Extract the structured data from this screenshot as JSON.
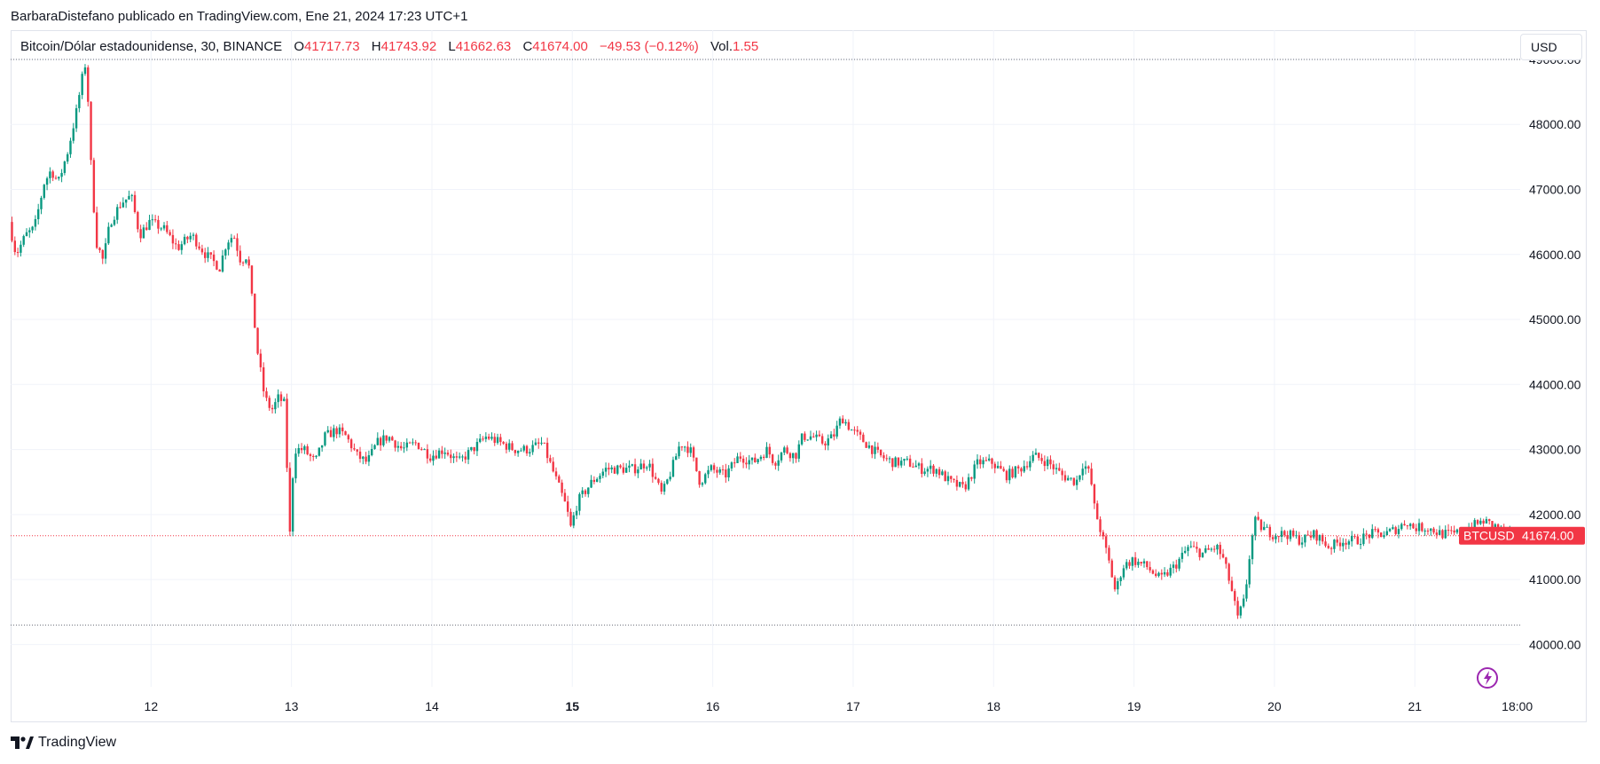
{
  "publication": {
    "line": "BarbaraDistefano publicado en TradingView.com, Ene 21, 2024 17:23 UTC+1"
  },
  "legend": {
    "symbol": "Bitcoin/Dólar estadounidense, 30, BINANCE",
    "open_label": "O",
    "open": "41717.73",
    "high_label": "H",
    "high": "41743.92",
    "low_label": "L",
    "low": "41662.63",
    "close_label": "C",
    "close": "41674.00",
    "change": "−49.53 (−0.12%)",
    "vol_label": "Vol.",
    "vol": "1.55"
  },
  "toolbar": {
    "currency": "USD"
  },
  "price_tag": {
    "symbol": "BTCUSD",
    "value": "41674.00"
  },
  "footer": {
    "brand": "TradingView"
  },
  "icons": {
    "alert": "lightning-icon",
    "logo": "tradingview-logo-icon"
  },
  "colors": {
    "up": "#089981",
    "down": "#f23645",
    "grid": "#f0f3fa",
    "text": "#131722",
    "alert": "#9c27b0"
  },
  "chart_data": {
    "type": "candlestick",
    "interval": "30",
    "y_ticks": [
      40000,
      41000,
      42000,
      43000,
      44000,
      45000,
      46000,
      47000,
      48000,
      49000
    ],
    "y_tick_labels": [
      "40000.00",
      "41000.00",
      "42000.00",
      "43000.00",
      "44000.00",
      "45000.00",
      "46000.00",
      "47000.00",
      "48000.00",
      "49000.00"
    ],
    "ylim": [
      39350,
      49450
    ],
    "xlim": [
      11.0,
      21.75
    ],
    "x_ticks": [
      12,
      13,
      14,
      15,
      16,
      17,
      18,
      19,
      20,
      21,
      21.7292
    ],
    "x_tick_labels": [
      "12",
      "13",
      "14",
      "15",
      "16",
      "17",
      "18",
      "19",
      "20",
      "21",
      "18:00"
    ],
    "x_tick_bold": [
      "15"
    ],
    "high_line": 49000,
    "low_line": 40300,
    "last_price": 41674.0,
    "grid": true,
    "path": [
      [
        11.0,
        46500
      ],
      [
        11.05,
        46000
      ],
      [
        11.12,
        46300
      ],
      [
        11.18,
        46400
      ],
      [
        11.25,
        47100
      ],
      [
        11.3,
        47300
      ],
      [
        11.35,
        47100
      ],
      [
        11.42,
        47600
      ],
      [
        11.48,
        48200
      ],
      [
        11.52,
        48700
      ],
      [
        11.55,
        49000
      ],
      [
        11.58,
        47500
      ],
      [
        11.62,
        46200
      ],
      [
        11.67,
        45900
      ],
      [
        11.72,
        46500
      ],
      [
        11.8,
        46800
      ],
      [
        11.87,
        46900
      ],
      [
        11.93,
        46300
      ],
      [
        12.0,
        46500
      ],
      [
        12.1,
        46400
      ],
      [
        12.2,
        46100
      ],
      [
        12.3,
        46300
      ],
      [
        12.4,
        46000
      ],
      [
        12.5,
        45800
      ],
      [
        12.55,
        46200
      ],
      [
        12.6,
        46300
      ],
      [
        12.65,
        45900
      ],
      [
        12.7,
        46000
      ],
      [
        12.73,
        45300
      ],
      [
        12.77,
        44500
      ],
      [
        12.82,
        43800
      ],
      [
        12.87,
        43600
      ],
      [
        12.92,
        43800
      ],
      [
        12.96,
        43700
      ],
      [
        13.0,
        41700
      ],
      [
        13.03,
        43000
      ],
      [
        13.1,
        43000
      ],
      [
        13.18,
        42800
      ],
      [
        13.25,
        43200
      ],
      [
        13.33,
        43300
      ],
      [
        13.4,
        43200
      ],
      [
        13.48,
        42900
      ],
      [
        13.55,
        42800
      ],
      [
        13.62,
        43100
      ],
      [
        13.7,
        43200
      ],
      [
        13.8,
        43000
      ],
      [
        13.9,
        43100
      ],
      [
        14.0,
        42900
      ],
      [
        14.1,
        43000
      ],
      [
        14.2,
        42800
      ],
      [
        14.3,
        43000
      ],
      [
        14.4,
        43200
      ],
      [
        14.5,
        43100
      ],
      [
        14.6,
        43000
      ],
      [
        14.7,
        43000
      ],
      [
        14.8,
        43100
      ],
      [
        14.85,
        42800
      ],
      [
        14.92,
        42400
      ],
      [
        14.97,
        42100
      ],
      [
        15.0,
        41800
      ],
      [
        15.05,
        42200
      ],
      [
        15.15,
        42500
      ],
      [
        15.25,
        42700
      ],
      [
        15.35,
        42700
      ],
      [
        15.45,
        42700
      ],
      [
        15.55,
        42800
      ],
      [
        15.65,
        42300
      ],
      [
        15.72,
        42700
      ],
      [
        15.78,
        43100
      ],
      [
        15.85,
        43000
      ],
      [
        15.92,
        42500
      ],
      [
        16.0,
        42700
      ],
      [
        16.1,
        42600
      ],
      [
        16.2,
        42900
      ],
      [
        16.3,
        42800
      ],
      [
        16.4,
        43000
      ],
      [
        16.45,
        42800
      ],
      [
        16.52,
        43000
      ],
      [
        16.6,
        42900
      ],
      [
        16.65,
        43200
      ],
      [
        16.72,
        43200
      ],
      [
        16.8,
        43100
      ],
      [
        16.87,
        43200
      ],
      [
        16.93,
        43500
      ],
      [
        17.0,
        43300
      ],
      [
        17.1,
        43100
      ],
      [
        17.2,
        42900
      ],
      [
        17.3,
        42800
      ],
      [
        17.4,
        42800
      ],
      [
        17.5,
        42700
      ],
      [
        17.6,
        42700
      ],
      [
        17.7,
        42500
      ],
      [
        17.8,
        42400
      ],
      [
        17.9,
        42800
      ],
      [
        18.0,
        42800
      ],
      [
        18.1,
        42600
      ],
      [
        18.2,
        42700
      ],
      [
        18.3,
        42900
      ],
      [
        18.4,
        42800
      ],
      [
        18.5,
        42600
      ],
      [
        18.6,
        42500
      ],
      [
        18.65,
        42800
      ],
      [
        18.7,
        42600
      ],
      [
        18.73,
        42100
      ],
      [
        18.78,
        41700
      ],
      [
        18.83,
        41300
      ],
      [
        18.88,
        40800
      ],
      [
        18.93,
        41200
      ],
      [
        19.0,
        41300
      ],
      [
        19.1,
        41200
      ],
      [
        19.2,
        41000
      ],
      [
        19.3,
        41200
      ],
      [
        19.4,
        41500
      ],
      [
        19.5,
        41400
      ],
      [
        19.6,
        41500
      ],
      [
        19.65,
        41300
      ],
      [
        19.7,
        40900
      ],
      [
        19.75,
        40400
      ],
      [
        19.8,
        40700
      ],
      [
        19.83,
        41300
      ],
      [
        19.87,
        41900
      ],
      [
        19.92,
        41800
      ],
      [
        20.0,
        41700
      ],
      [
        20.1,
        41700
      ],
      [
        20.2,
        41600
      ],
      [
        20.3,
        41700
      ],
      [
        20.4,
        41500
      ],
      [
        20.5,
        41600
      ],
      [
        20.6,
        41600
      ],
      [
        20.7,
        41700
      ],
      [
        20.8,
        41700
      ],
      [
        20.9,
        41800
      ],
      [
        20.95,
        41900
      ],
      [
        21.0,
        41800
      ],
      [
        21.1,
        41800
      ],
      [
        21.2,
        41700
      ],
      [
        21.3,
        41700
      ],
      [
        21.4,
        41800
      ],
      [
        21.5,
        41900
      ],
      [
        21.6,
        41800
      ],
      [
        21.65,
        41717
      ],
      [
        21.68,
        41674
      ]
    ]
  }
}
